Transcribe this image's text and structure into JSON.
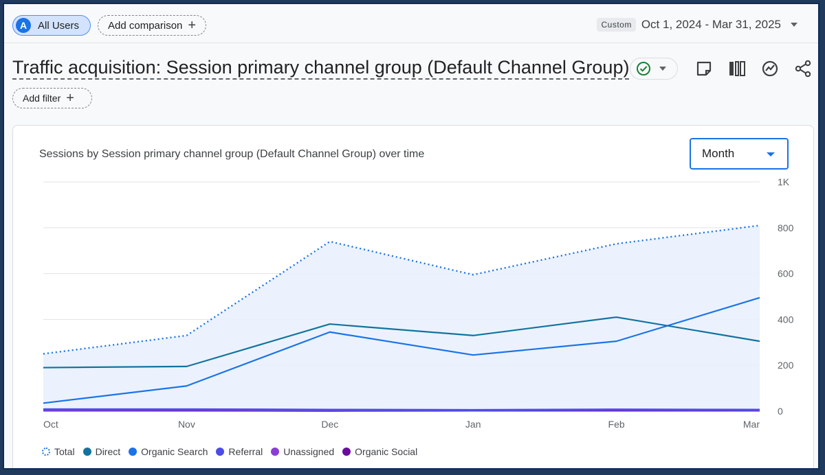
{
  "header": {
    "segment_badge": "A",
    "segment_label": "All Users",
    "add_comparison": "Add comparison",
    "date_tag": "Custom",
    "date_range": "Oct 1, 2024 - Mar 31, 2025"
  },
  "title": "Traffic acquisition: Session primary channel group (Default Channel Group)",
  "add_filter": "Add filter",
  "icons": {
    "status": "check-circle-icon",
    "notes": "note-icon",
    "compare": "columns-icon",
    "insights": "insights-icon",
    "share": "share-icon"
  },
  "card": {
    "period_select": "Month"
  },
  "chart_data": {
    "type": "line",
    "title": "Sessions by Session primary channel group (Default Channel Group) over time",
    "categories": [
      "Oct",
      "Nov",
      "Dec",
      "Jan",
      "Feb",
      "Mar"
    ],
    "y_ticks": [
      "0",
      "200",
      "400",
      "600",
      "800",
      "1K"
    ],
    "ylim": [
      0,
      1000
    ],
    "grid": true,
    "legend_position": "bottom-left",
    "series": [
      {
        "name": "Total",
        "values": [
          250,
          330,
          740,
          595,
          730,
          810
        ],
        "color": "#1a73e8",
        "style": "dotted-area"
      },
      {
        "name": "Direct",
        "values": [
          190,
          195,
          380,
          330,
          410,
          305
        ],
        "color": "#12739e"
      },
      {
        "name": "Organic Search",
        "values": [
          35,
          110,
          345,
          245,
          305,
          495
        ],
        "color": "#1a73e8"
      },
      {
        "name": "Referral",
        "values": [
          8,
          8,
          6,
          5,
          7,
          6
        ],
        "color": "#4c4ce8"
      },
      {
        "name": "Unassigned",
        "values": [
          5,
          6,
          4,
          4,
          6,
          5
        ],
        "color": "#8a3ed6"
      },
      {
        "name": "Organic Social",
        "values": [
          3,
          3,
          2,
          3,
          3,
          3
        ],
        "color": "#6a0b9e"
      }
    ]
  }
}
